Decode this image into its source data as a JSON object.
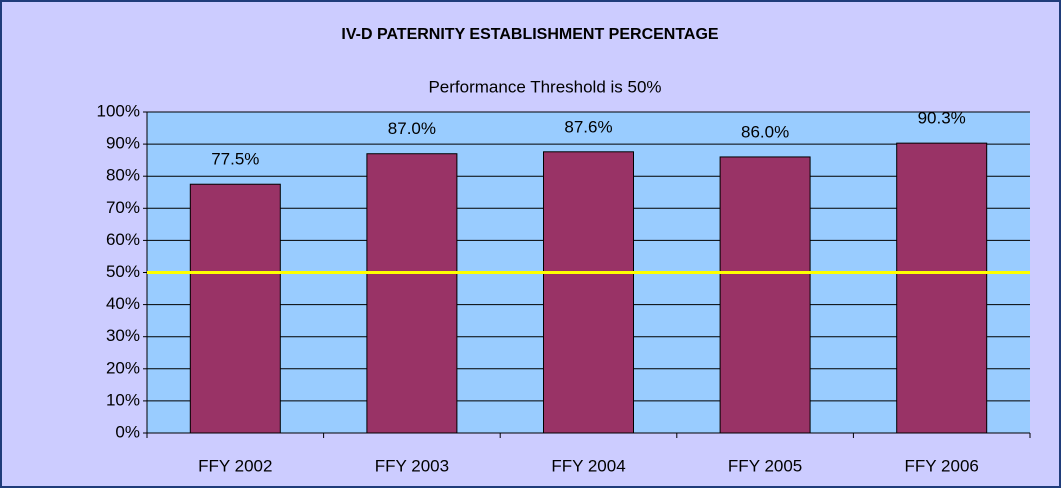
{
  "chart_data": {
    "type": "bar",
    "title": "IV-D PATERNITY ESTABLISHMENT PERCENTAGE",
    "subtitle": "Performance Threshold is 50%",
    "categories": [
      "FFY 2002",
      "FFY 2003",
      "FFY 2004",
      "FFY 2005",
      "FFY 2006"
    ],
    "values": [
      77.5,
      87.0,
      87.6,
      86.0,
      90.3
    ],
    "value_labels": [
      "77.5%",
      "87.0%",
      "87.6%",
      "86.0%",
      "90.3%"
    ],
    "color": "#993366",
    "threshold": 50,
    "threshold_color": "#ffff00",
    "ylim": [
      0,
      100
    ],
    "yticks": [
      {
        "value": 0,
        "label": "0%"
      },
      {
        "value": 10,
        "label": "10%"
      },
      {
        "value": 20,
        "label": "20%"
      },
      {
        "value": 30,
        "label": "30%"
      },
      {
        "value": 40,
        "label": "40%"
      },
      {
        "value": 50,
        "label": "50%"
      },
      {
        "value": 60,
        "label": "60%"
      },
      {
        "value": 70,
        "label": "70%"
      },
      {
        "value": 80,
        "label": "80%"
      },
      {
        "value": 90,
        "label": "90%"
      },
      {
        "value": 100,
        "label": "100%"
      }
    ],
    "grid": true
  }
}
